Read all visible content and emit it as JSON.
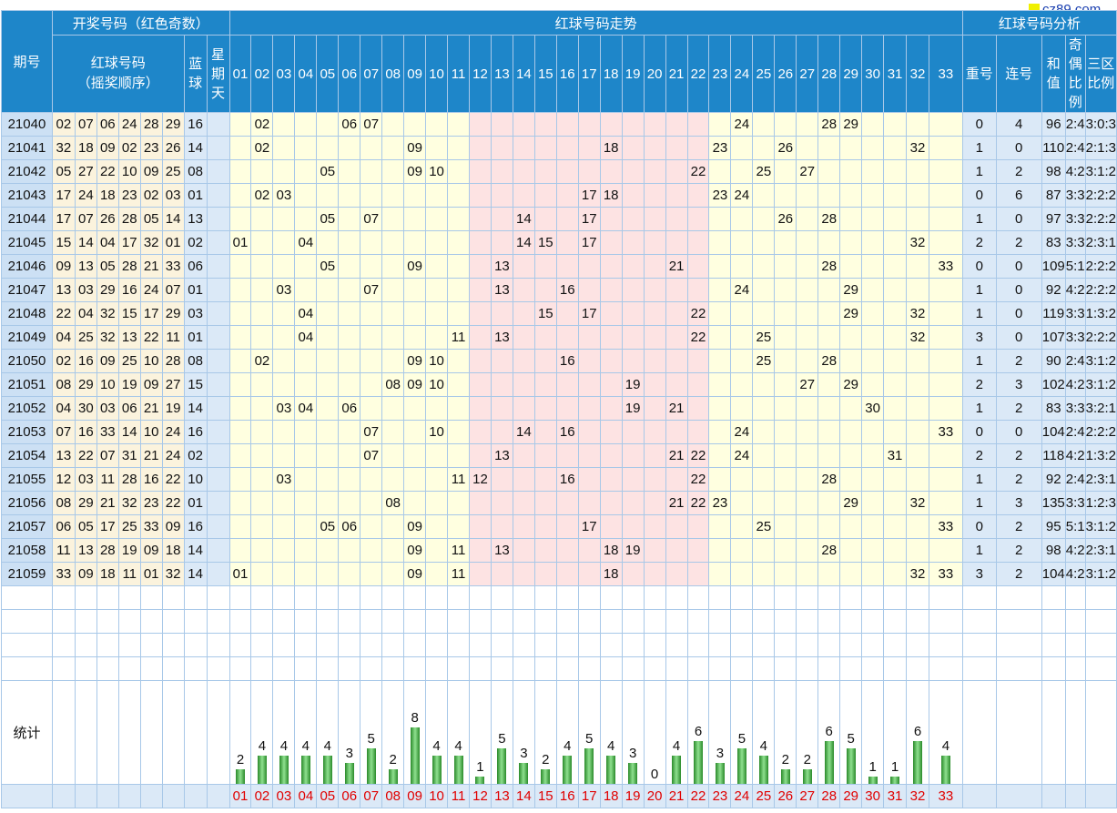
{
  "headers": {
    "period": "期号",
    "draw_group": "开奖号码（红色奇数）",
    "red_balls": "红球号码",
    "red_order": "（摇奖顺序）",
    "blue": "蓝球",
    "weekday": "星期天",
    "trend": "红球号码走势",
    "analysis": "红球号码分析",
    "repeat": "重号",
    "consecutive": "连号",
    "sum": "和值",
    "odd_even": "奇偶比例",
    "zone": "三区比例"
  },
  "logo_text": "cz89.com",
  "stats_label": "统计",
  "columns": [
    "01",
    "02",
    "03",
    "04",
    "05",
    "06",
    "07",
    "08",
    "09",
    "10",
    "11",
    "12",
    "13",
    "14",
    "15",
    "16",
    "17",
    "18",
    "19",
    "20",
    "21",
    "22",
    "23",
    "24",
    "25",
    "26",
    "27",
    "28",
    "29",
    "30",
    "31",
    "32",
    "33"
  ],
  "rows": [
    {
      "period": "21040",
      "red": [
        "02",
        "07",
        "06",
        "24",
        "28",
        "29"
      ],
      "blue": "16",
      "repeat": "0",
      "consec": "4",
      "sum": "96",
      "oe": "2:4",
      "zone": "3:0:3"
    },
    {
      "period": "21041",
      "red": [
        "32",
        "18",
        "09",
        "02",
        "23",
        "26"
      ],
      "blue": "14",
      "repeat": "1",
      "consec": "0",
      "sum": "110",
      "oe": "2:4",
      "zone": "2:1:3"
    },
    {
      "period": "21042",
      "red": [
        "05",
        "27",
        "22",
        "10",
        "09",
        "25"
      ],
      "blue": "08",
      "repeat": "1",
      "consec": "2",
      "sum": "98",
      "oe": "4:2",
      "zone": "3:1:2"
    },
    {
      "period": "21043",
      "red": [
        "17",
        "24",
        "18",
        "23",
        "02",
        "03"
      ],
      "blue": "01",
      "repeat": "0",
      "consec": "6",
      "sum": "87",
      "oe": "3:3",
      "zone": "2:2:2"
    },
    {
      "period": "21044",
      "red": [
        "17",
        "07",
        "26",
        "28",
        "05",
        "14"
      ],
      "blue": "13",
      "repeat": "1",
      "consec": "0",
      "sum": "97",
      "oe": "3:3",
      "zone": "2:2:2"
    },
    {
      "period": "21045",
      "red": [
        "15",
        "14",
        "04",
        "17",
        "32",
        "01"
      ],
      "blue": "02",
      "repeat": "2",
      "consec": "2",
      "sum": "83",
      "oe": "3:3",
      "zone": "2:3:1"
    },
    {
      "period": "21046",
      "red": [
        "09",
        "13",
        "05",
        "28",
        "21",
        "33"
      ],
      "blue": "06",
      "repeat": "0",
      "consec": "0",
      "sum": "109",
      "oe": "5:1",
      "zone": "2:2:2"
    },
    {
      "period": "21047",
      "red": [
        "13",
        "03",
        "29",
        "16",
        "24",
        "07"
      ],
      "blue": "01",
      "repeat": "1",
      "consec": "0",
      "sum": "92",
      "oe": "4:2",
      "zone": "2:2:2"
    },
    {
      "period": "21048",
      "red": [
        "22",
        "04",
        "32",
        "15",
        "17",
        "29"
      ],
      "blue": "03",
      "repeat": "1",
      "consec": "0",
      "sum": "119",
      "oe": "3:3",
      "zone": "1:3:2"
    },
    {
      "period": "21049",
      "red": [
        "04",
        "25",
        "32",
        "13",
        "22",
        "11"
      ],
      "blue": "01",
      "repeat": "3",
      "consec": "0",
      "sum": "107",
      "oe": "3:3",
      "zone": "2:2:2"
    },
    {
      "period": "21050",
      "red": [
        "02",
        "16",
        "09",
        "25",
        "10",
        "28"
      ],
      "blue": "08",
      "repeat": "1",
      "consec": "2",
      "sum": "90",
      "oe": "2:4",
      "zone": "3:1:2"
    },
    {
      "period": "21051",
      "red": [
        "08",
        "29",
        "10",
        "19",
        "09",
        "27"
      ],
      "blue": "15",
      "repeat": "2",
      "consec": "3",
      "sum": "102",
      "oe": "4:2",
      "zone": "3:1:2"
    },
    {
      "period": "21052",
      "red": [
        "04",
        "30",
        "03",
        "06",
        "21",
        "19"
      ],
      "blue": "14",
      "repeat": "1",
      "consec": "2",
      "sum": "83",
      "oe": "3:3",
      "zone": "3:2:1"
    },
    {
      "period": "21053",
      "red": [
        "07",
        "16",
        "33",
        "14",
        "10",
        "24"
      ],
      "blue": "16",
      "repeat": "0",
      "consec": "0",
      "sum": "104",
      "oe": "2:4",
      "zone": "2:2:2"
    },
    {
      "period": "21054",
      "red": [
        "13",
        "22",
        "07",
        "31",
        "21",
        "24"
      ],
      "blue": "02",
      "repeat": "2",
      "consec": "2",
      "sum": "118",
      "oe": "4:2",
      "zone": "1:3:2"
    },
    {
      "period": "21055",
      "red": [
        "12",
        "03",
        "11",
        "28",
        "16",
        "22"
      ],
      "blue": "10",
      "repeat": "1",
      "consec": "2",
      "sum": "92",
      "oe": "2:4",
      "zone": "2:3:1"
    },
    {
      "period": "21056",
      "red": [
        "08",
        "29",
        "21",
        "32",
        "23",
        "22"
      ],
      "blue": "01",
      "repeat": "1",
      "consec": "3",
      "sum": "135",
      "oe": "3:3",
      "zone": "1:2:3"
    },
    {
      "period": "21057",
      "red": [
        "06",
        "05",
        "17",
        "25",
        "33",
        "09"
      ],
      "blue": "16",
      "repeat": "0",
      "consec": "2",
      "sum": "95",
      "oe": "5:1",
      "zone": "3:1:2"
    },
    {
      "period": "21058",
      "red": [
        "11",
        "13",
        "28",
        "19",
        "09",
        "18"
      ],
      "blue": "14",
      "repeat": "1",
      "consec": "2",
      "sum": "98",
      "oe": "4:2",
      "zone": "2:3:1"
    },
    {
      "period": "21059",
      "red": [
        "33",
        "09",
        "18",
        "11",
        "01",
        "32"
      ],
      "blue": "14",
      "repeat": "3",
      "consec": "2",
      "sum": "104",
      "oe": "4:2",
      "zone": "3:1:2"
    }
  ],
  "chart_data": {
    "type": "bar",
    "categories": [
      "01",
      "02",
      "03",
      "04",
      "05",
      "06",
      "07",
      "08",
      "09",
      "10",
      "11",
      "12",
      "13",
      "14",
      "15",
      "16",
      "17",
      "18",
      "19",
      "20",
      "21",
      "22",
      "23",
      "24",
      "25",
      "26",
      "27",
      "28",
      "29",
      "30",
      "31",
      "32",
      "33"
    ],
    "values": [
      2,
      4,
      4,
      4,
      4,
      3,
      5,
      2,
      8,
      4,
      4,
      1,
      5,
      3,
      2,
      4,
      5,
      4,
      3,
      0,
      4,
      6,
      3,
      5,
      4,
      2,
      2,
      6,
      5,
      1,
      1,
      6,
      4
    ],
    "ylim": [
      0,
      8
    ],
    "xlabel": "",
    "ylabel": "",
    "title": ""
  },
  "colors": {
    "header": "#1e86c9",
    "odd": "#e00000",
    "zone_mid": "#fde3e3",
    "zone_side": "#ffffe0",
    "bar": "#3aa83a"
  }
}
